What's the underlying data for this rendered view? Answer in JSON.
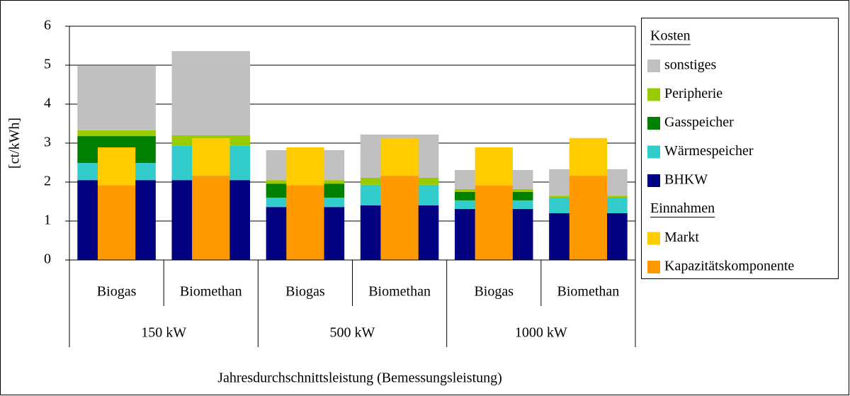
{
  "chart_data": {
    "type": "bar",
    "stacked": true,
    "y_label": "[ct/kWh]",
    "x_label": "Jahresdurchschnittsleistung (Bemessungsleistung)",
    "categories": [
      "Biogas",
      "Biomethan",
      "Biogas",
      "Biomethan",
      "Biogas",
      "Biomethan"
    ],
    "groups": [
      "150 kW",
      "500 kW",
      "1000 kW"
    ],
    "ylim": [
      0,
      6
    ],
    "yticks": [
      0,
      1,
      2,
      3,
      4,
      5,
      6
    ],
    "grid": true,
    "legend": "right",
    "cost_title": "Kosten",
    "cost_series": [
      {
        "name": "BHKW",
        "color": "#000080",
        "values": [
          2.05,
          2.05,
          1.36,
          1.4,
          1.31,
          1.2
        ]
      },
      {
        "name": "Wärmespeicher",
        "color": "#33cccc",
        "values": [
          0.44,
          0.88,
          0.24,
          0.53,
          0.22,
          0.4
        ]
      },
      {
        "name": "Gasspeicher",
        "color": "#008000",
        "values": [
          0.69,
          0,
          0.36,
          0,
          0.22,
          0
        ]
      },
      {
        "name": "Peripherie",
        "color": "#99cc00",
        "values": [
          0.15,
          0.27,
          0.09,
          0.18,
          0.07,
          0.05
        ]
      },
      {
        "name": "sonstiges",
        "color": "#c0c0c0",
        "values": [
          1.65,
          2.16,
          0.77,
          1.11,
          0.49,
          0.68
        ]
      }
    ],
    "revenue_title": "Einnahmen",
    "revenue_series": [
      {
        "name": "Kapazitätskomponente",
        "color": "#ff9900",
        "values": [
          1.91,
          2.16,
          1.91,
          2.16,
          1.91,
          2.16
        ]
      },
      {
        "name": "Markt",
        "color": "#ffcc00",
        "values": [
          0.98,
          0.97,
          0.98,
          0.97,
          0.98,
          0.97
        ]
      }
    ]
  }
}
